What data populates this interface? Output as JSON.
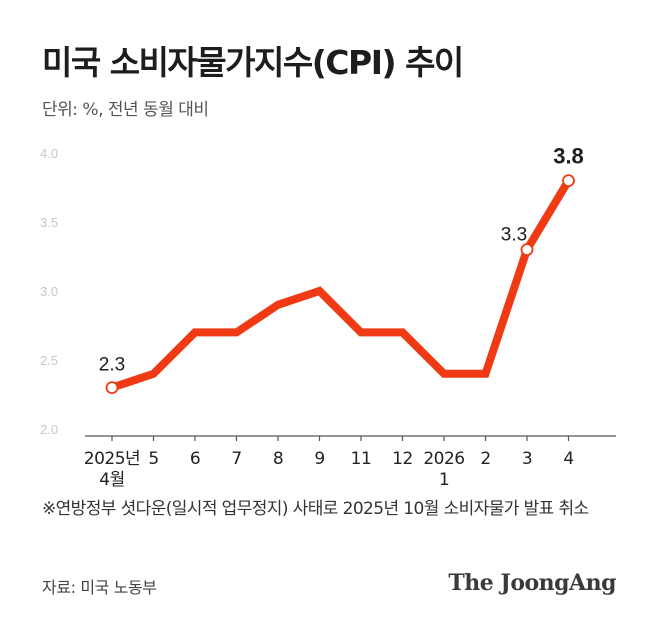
{
  "title": "미국 소비자물가지수(CPI) 추이",
  "unit": "단위: %, 전년 동월 대비",
  "footnote": "※연방정부 셧다운(일시적 업무정지) 사태로 2025년 10월 소비자물가 발표 취소",
  "source": "자료: 미국 노동부",
  "brand": "The JoongAng",
  "colors": {
    "line": "#f03a14",
    "axis": "#555555",
    "tick_label": "#c8c8c8"
  },
  "chart_data": {
    "type": "line",
    "title": "미국 소비자물가지수(CPI) 추이",
    "ylabel": "단위: %, 전년 동월 대비",
    "ylim": [
      2.0,
      4.0
    ],
    "yticks": [
      "2.0",
      "2.5",
      "3.0",
      "3.5",
      "4.0"
    ],
    "grid": false,
    "categories": [
      "2025년\n4월",
      "5",
      "6",
      "7",
      "8",
      "9",
      "11",
      "12",
      "2026\n1",
      "2",
      "3",
      "4"
    ],
    "values": [
      2.3,
      2.4,
      2.7,
      2.7,
      2.9,
      3.0,
      2.7,
      2.7,
      2.4,
      2.4,
      3.3,
      3.8
    ],
    "labeled_points": [
      {
        "index": 0,
        "label": "2.3"
      },
      {
        "index": 10,
        "label": "3.3"
      },
      {
        "index": 11,
        "label": "3.8"
      }
    ]
  }
}
